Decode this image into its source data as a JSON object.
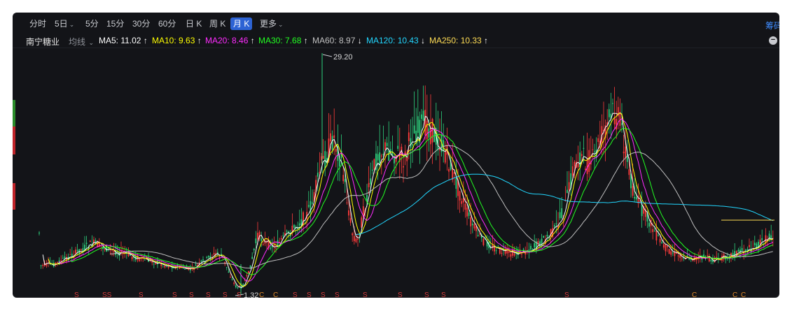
{
  "toolbar": {
    "tabs": [
      {
        "label": "分时"
      },
      {
        "label": "5日"
      },
      {
        "label": "5分"
      },
      {
        "label": "15分"
      },
      {
        "label": "30分"
      },
      {
        "label": "60分"
      },
      {
        "label": "日 K"
      },
      {
        "label": "周 K"
      },
      {
        "label": "月 K",
        "active": true
      },
      {
        "label": "更多"
      }
    ],
    "right_button": "筹码"
  },
  "ma_bar": {
    "stock_name": "南宁糖业",
    "ma_type": "均线",
    "items": [
      {
        "label": "MA5: 11.02",
        "arrow": "↑",
        "color": "#ffffff"
      },
      {
        "label": "MA10: 9.63",
        "arrow": "↑",
        "color": "#ffff00"
      },
      {
        "label": "MA20: 8.46",
        "arrow": "↑",
        "color": "#ff2cff"
      },
      {
        "label": "MA30: 7.68",
        "arrow": "↑",
        "color": "#22ff22"
      },
      {
        "label": "MA60: 8.97",
        "arrow": "↓",
        "color": "#c0c0c0"
      },
      {
        "label": "MA120: 10.43",
        "arrow": "↓",
        "color": "#22d7ff"
      },
      {
        "label": "MA250: 10.33",
        "arrow": "↑",
        "color": "#ffdd55"
      }
    ]
  },
  "chart_data": {
    "type": "candlestick",
    "period": "月 K",
    "annotations": {
      "high": "29.20",
      "low": "1.32"
    },
    "colors": {
      "up": "#ff3b3b",
      "down": "#2ed17d",
      "ma5": "#ffffff",
      "ma10": "#ffff00",
      "ma20": "#ff2cff",
      "ma30": "#22ff22",
      "ma60": "#c0c0c0",
      "ma120": "#22d7ff",
      "ma250": "#ffdd55"
    },
    "bottom_markers": [
      "S",
      "SS",
      "S",
      "S",
      "S",
      "S",
      "S",
      "S",
      "C",
      "C",
      "S",
      "S",
      "S",
      "S",
      "S",
      "S",
      "S",
      "S",
      "S",
      "C",
      "C",
      "C"
    ]
  }
}
